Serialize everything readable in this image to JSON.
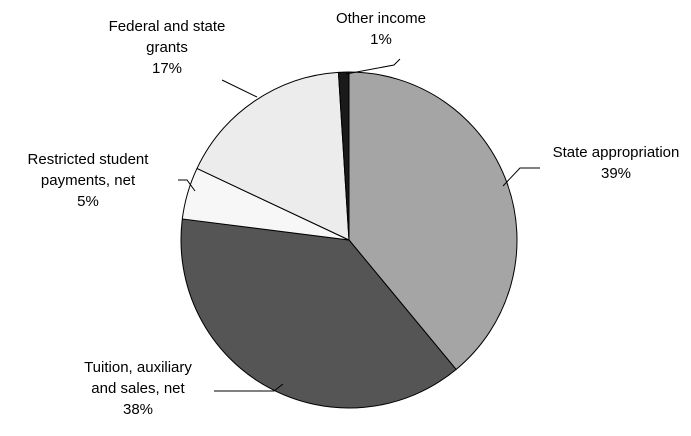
{
  "chart_data": {
    "type": "pie",
    "title": "",
    "slices": [
      {
        "label_lines": [
          "State appropriation"
        ],
        "pct_text": "39%",
        "value": 39,
        "color": "#a5a5a5"
      },
      {
        "label_lines": [
          "Tuition, auxiliary",
          "and sales, net"
        ],
        "pct_text": "38%",
        "value": 38,
        "color": "#555555"
      },
      {
        "label_lines": [
          "Restricted student",
          "payments, net"
        ],
        "pct_text": "5%",
        "value": 5,
        "color": "#f7f7f7"
      },
      {
        "label_lines": [
          "Federal and state",
          "grants"
        ],
        "pct_text": "17%",
        "value": 17,
        "color": "#ececec"
      },
      {
        "label_lines": [
          "Other income"
        ],
        "pct_text": "1%",
        "value": 1,
        "color": "#1a1a1a"
      }
    ]
  }
}
